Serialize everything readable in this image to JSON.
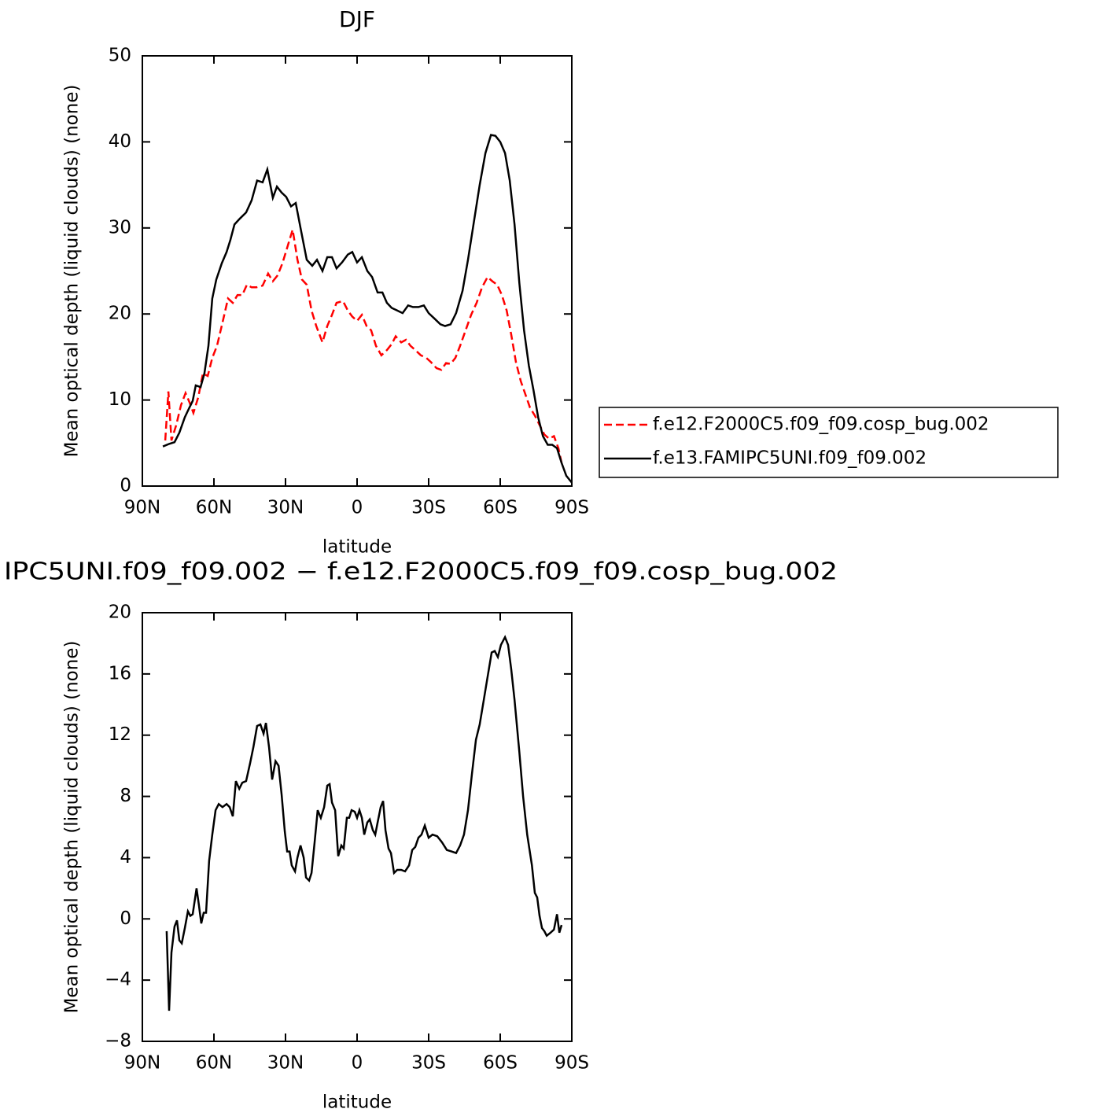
{
  "chart_data": [
    {
      "type": "line",
      "title": "DJF",
      "xlabel": "latitude",
      "ylabel": "Mean optical depth (liquid clouds) (none)",
      "xlim": [
        90,
        -90
      ],
      "xticks": [
        {
          "value": 90,
          "label": "90N"
        },
        {
          "value": 60,
          "label": "60N"
        },
        {
          "value": 30,
          "label": "30N"
        },
        0,
        {
          "value": -30,
          "label": "30S"
        },
        {
          "value": -60,
          "label": "60S"
        },
        {
          "value": -90,
          "label": "90S"
        }
      ],
      "ylim": [
        0,
        50
      ],
      "yticks": [
        0,
        10,
        20,
        30,
        40,
        50
      ],
      "legend": "right",
      "series": [
        {
          "name": "f.e12.F2000C5.f09_f09.cosp_bug.002",
          "color": "#ff0000",
          "dashed": true,
          "x": [
            80.4,
            79.1,
            77.8,
            75.8,
            73.8,
            71.9,
            70.2,
            68.6,
            66.6,
            64.6,
            62.6,
            60.7,
            58.7,
            56.4,
            54.1,
            52.1,
            50.1,
            48.1,
            46.2,
            44.2,
            42.2,
            39.6,
            37.3,
            35.3,
            33.3,
            31.3,
            29.3,
            27.0,
            25.0,
            23.1,
            21.1,
            19.1,
            17.1,
            14.5,
            12.5,
            10.5,
            8.6,
            5.9,
            3.9,
            2.0,
            0.0,
            -2.0,
            -4.0,
            -5.9,
            -7.9,
            -10.2,
            -12.5,
            -14.5,
            -16.2,
            -18.5,
            -20.5,
            -22.4,
            -24.4,
            -26.7,
            -29.0,
            -31.0,
            -33.3,
            -35.3,
            -37.3,
            -39.2,
            -41.2,
            -43.2,
            -45.5,
            -47.8,
            -50.1,
            -52.4,
            -54.7,
            -56.7,
            -58.7,
            -60.7,
            -62.7,
            -64.6,
            -66.6,
            -68.6,
            -70.6,
            -72.5,
            -74.5,
            -76.5,
            -78.5,
            -80.5,
            -82.5,
            -84.4,
            -85.7
          ],
          "values": [
            5.3,
            11.0,
            5.3,
            7.1,
            9.4,
            10.8,
            9.7,
            8.5,
            10.3,
            13.1,
            12.8,
            14.9,
            16.3,
            19.0,
            21.8,
            21.3,
            22.2,
            22.2,
            23.4,
            23.1,
            23.1,
            23.3,
            24.7,
            23.8,
            24.5,
            25.9,
            27.7,
            29.8,
            26.3,
            24.0,
            23.4,
            20.4,
            18.6,
            16.7,
            18.6,
            19.9,
            21.3,
            21.5,
            20.4,
            19.7,
            19.2,
            19.9,
            18.6,
            18.1,
            16.3,
            15.2,
            15.8,
            16.5,
            17.4,
            16.7,
            17.0,
            16.3,
            15.8,
            15.2,
            14.9,
            14.4,
            13.7,
            13.5,
            14.3,
            14.2,
            14.9,
            16.3,
            18.1,
            19.9,
            21.3,
            23.1,
            24.3,
            23.8,
            23.4,
            22.2,
            20.4,
            17.6,
            14.4,
            12.2,
            10.6,
            9.1,
            8.2,
            7.1,
            6.0,
            5.5,
            5.8,
            4.4,
            2.7
          ]
        },
        {
          "name": "f.e13.FAMIPC5UNI.f09_f09.002",
          "color": "#000000",
          "dashed": false,
          "x": [
            81.4,
            78.8,
            76.5,
            74.5,
            72.2,
            70.5,
            68.9,
            67.6,
            65.6,
            64.0,
            62.3,
            60.7,
            59.0,
            56.7,
            54.7,
            53.1,
            51.4,
            49.1,
            46.5,
            44.2,
            41.9,
            39.6,
            37.6,
            35.3,
            33.6,
            31.6,
            29.7,
            27.7,
            25.7,
            23.7,
            21.1,
            18.8,
            16.8,
            14.5,
            12.5,
            10.5,
            8.6,
            6.3,
            3.9,
            2.0,
            0.0,
            -2.0,
            -4.3,
            -6.3,
            -8.6,
            -10.6,
            -12.5,
            -14.5,
            -16.8,
            -19.1,
            -21.4,
            -23.4,
            -25.7,
            -28.0,
            -30.0,
            -32.3,
            -34.9,
            -36.9,
            -39.2,
            -41.5,
            -44.2,
            -46.5,
            -48.8,
            -51.4,
            -53.8,
            -56.1,
            -58.0,
            -60.0,
            -62.0,
            -64.0,
            -66.0,
            -68.0,
            -70.0,
            -72.0,
            -73.9,
            -75.9,
            -77.9,
            -79.9,
            -81.8,
            -83.8,
            -85.7,
            -87.7,
            -90.0
          ],
          "values": [
            4.6,
            4.9,
            5.1,
            6.2,
            8.0,
            9.0,
            9.9,
            11.7,
            11.5,
            13.1,
            16.3,
            21.8,
            24.0,
            25.9,
            27.2,
            28.6,
            30.4,
            31.1,
            31.8,
            33.2,
            35.5,
            35.3,
            36.8,
            33.5,
            34.8,
            34.1,
            33.6,
            32.5,
            32.9,
            30.0,
            26.3,
            25.6,
            26.3,
            25.0,
            26.6,
            26.6,
            25.3,
            26.0,
            26.9,
            27.2,
            26.0,
            26.6,
            25.0,
            24.3,
            22.5,
            22.5,
            21.3,
            20.7,
            20.4,
            20.1,
            21.0,
            20.8,
            20.8,
            21.0,
            20.1,
            19.5,
            18.8,
            18.6,
            18.8,
            20.1,
            22.7,
            26.3,
            30.4,
            35.0,
            38.7,
            40.8,
            40.7,
            40.0,
            38.7,
            35.5,
            30.4,
            23.6,
            18.1,
            14.0,
            11.2,
            8.0,
            5.8,
            4.8,
            4.8,
            4.4,
            2.7,
            1.2,
            0.4
          ]
        }
      ]
    },
    {
      "type": "line",
      "title": "IPC5UNI.f09_f09.002 − f.e12.F2000C5.f09_f09.cosp_bug.002",
      "xlabel": "latitude",
      "ylabel": "Mean optical depth (liquid clouds) (none)",
      "xlim": [
        90,
        -90
      ],
      "xticks": [
        {
          "value": 90,
          "label": "90N"
        },
        {
          "value": 60,
          "label": "60N"
        },
        {
          "value": 30,
          "label": "30N"
        },
        0,
        {
          "value": -30,
          "label": "30S"
        },
        {
          "value": -60,
          "label": "60S"
        },
        {
          "value": -90,
          "label": "90S"
        }
      ],
      "ylim": [
        -8,
        20
      ],
      "yticks": [
        {
          "value": -8,
          "label": "−8"
        },
        {
          "value": -4,
          "label": "−4"
        },
        0,
        4,
        8,
        12,
        16,
        20
      ],
      "series": [
        {
          "color": "#000000",
          "dashed": false,
          "x": [
            79.8,
            78.8,
            77.8,
            76.5,
            75.5,
            74.5,
            73.5,
            72.2,
            70.9,
            69.9,
            68.9,
            67.3,
            66.3,
            65.3,
            64.3,
            63.3,
            62.0,
            60.7,
            59.3,
            58.0,
            56.4,
            54.7,
            53.4,
            52.1,
            50.8,
            49.4,
            48.1,
            46.5,
            44.8,
            43.5,
            41.9,
            40.5,
            39.2,
            38.2,
            36.9,
            35.6,
            34.2,
            32.9,
            31.6,
            30.3,
            29.3,
            28.3,
            27.4,
            26.0,
            25.0,
            23.7,
            22.4,
            21.4,
            20.1,
            19.1,
            17.8,
            16.5,
            15.2,
            13.8,
            12.5,
            11.5,
            10.5,
            9.2,
            7.9,
            6.6,
            5.6,
            4.3,
            3.3,
            2.3,
            1.0,
            0.0,
            -1.0,
            -2.0,
            -3.0,
            -4.3,
            -5.3,
            -6.6,
            -7.6,
            -8.6,
            -9.9,
            -10.9,
            -11.9,
            -13.2,
            -14.2,
            -15.5,
            -16.8,
            -18.5,
            -20.1,
            -21.8,
            -23.1,
            -24.4,
            -25.7,
            -27.0,
            -28.4,
            -30.0,
            -31.6,
            -33.6,
            -35.6,
            -37.6,
            -39.6,
            -41.5,
            -43.2,
            -44.8,
            -46.5,
            -48.1,
            -49.8,
            -51.4,
            -53.1,
            -54.7,
            -56.4,
            -57.7,
            -59.0,
            -60.3,
            -62.0,
            -63.3,
            -64.6,
            -66.0,
            -68.0,
            -69.6,
            -71.3,
            -73.3,
            -74.5,
            -75.5,
            -76.5,
            -77.5,
            -78.5,
            -79.5,
            -81.1,
            -82.5,
            -83.8,
            -84.8,
            -85.7
          ],
          "values": [
            -0.8,
            -6.0,
            -2.2,
            -0.5,
            -0.1,
            -1.4,
            -1.6,
            -0.6,
            0.5,
            0.2,
            0.3,
            2.0,
            0.9,
            -0.3,
            0.4,
            0.4,
            3.8,
            5.5,
            7.1,
            7.5,
            7.3,
            7.5,
            7.3,
            6.7,
            9.0,
            8.5,
            8.9,
            9.0,
            10.2,
            11.2,
            12.6,
            12.7,
            12.1,
            12.8,
            11.2,
            9.1,
            10.3,
            10.0,
            8.1,
            5.7,
            4.4,
            4.4,
            3.5,
            3.1,
            4.0,
            4.8,
            4.0,
            2.7,
            2.5,
            3.0,
            5.0,
            7.1,
            6.6,
            7.3,
            8.7,
            8.8,
            7.6,
            7.1,
            4.1,
            4.8,
            4.6,
            6.6,
            6.6,
            7.1,
            7.0,
            6.6,
            7.1,
            6.6,
            5.5,
            6.3,
            6.5,
            5.8,
            5.5,
            6.3,
            7.3,
            7.7,
            5.8,
            4.6,
            4.3,
            3.0,
            3.2,
            3.2,
            3.1,
            3.5,
            4.5,
            4.7,
            5.3,
            5.5,
            6.1,
            5.3,
            5.5,
            5.4,
            5.0,
            4.5,
            4.4,
            4.3,
            4.8,
            5.5,
            7.1,
            9.4,
            11.7,
            12.7,
            14.3,
            15.8,
            17.4,
            17.5,
            17.1,
            17.9,
            18.4,
            17.9,
            16.3,
            14.3,
            10.9,
            8.0,
            5.5,
            3.5,
            1.7,
            1.4,
            0.2,
            -0.6,
            -0.8,
            -1.1,
            -0.9,
            -0.7,
            0.3,
            -0.9,
            -0.4
          ]
        }
      ]
    }
  ]
}
